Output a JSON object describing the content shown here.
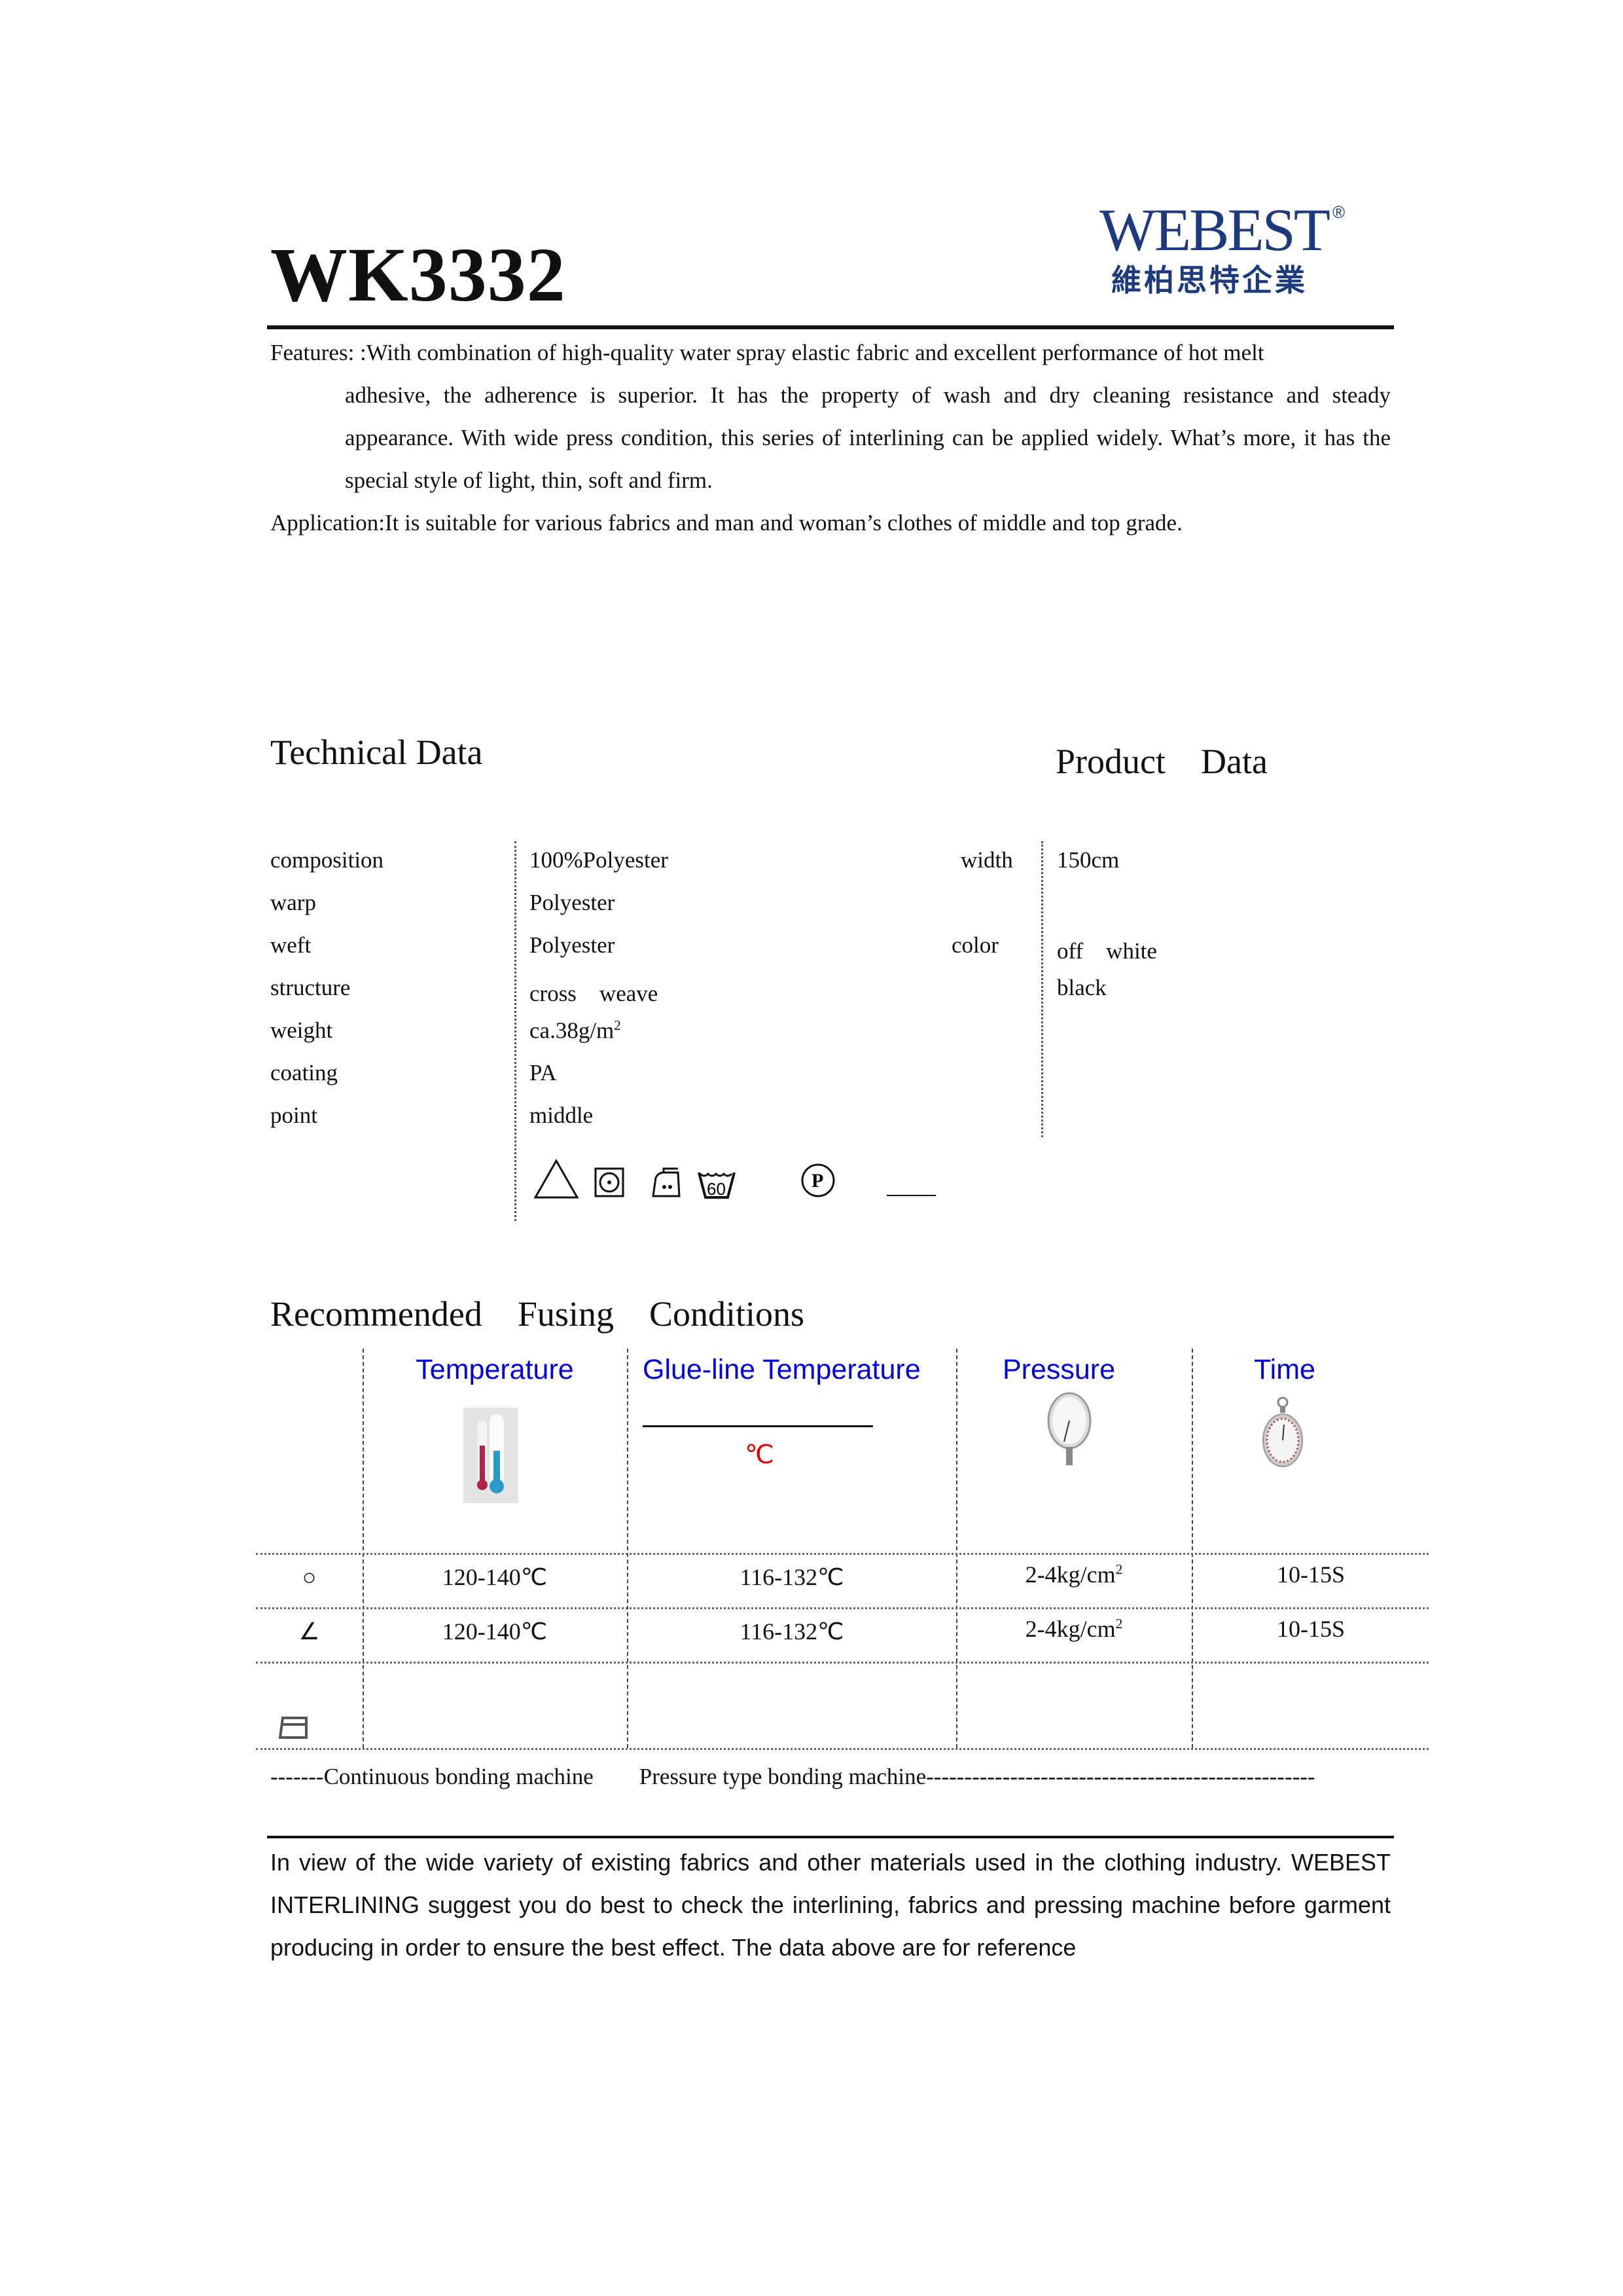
{
  "header": {
    "title": "WK3332",
    "logo_en": "WEBEST",
    "logo_reg": "®",
    "logo_zh": "維柏思特企業"
  },
  "features": {
    "label": "Features:",
    "text_first": ":With combination of high-quality water spray elastic fabric and excellent performance of hot melt",
    "text_rest": "adhesive, the adherence is superior. It has the property of wash and dry cleaning resistance and steady appearance. With wide press condition, this series of interlining can be applied widely. What’s more, it has the special style of light, thin, soft and firm."
  },
  "application": "Application:It is suitable for various fabrics and man and woman’s clothes of middle and top grade.",
  "technical": {
    "heading": "Technical Data",
    "rows": [
      {
        "label": "composition",
        "value": "100%Polyester"
      },
      {
        "label": "warp",
        "value": "Polyester"
      },
      {
        "label": "weft",
        "value": "Polyester"
      },
      {
        "label": "structure",
        "value": "cross　weave"
      },
      {
        "label": "weight",
        "value": "ca.38g/m",
        "sup": "2"
      },
      {
        "label": "coating",
        "value": "PA"
      },
      {
        "label": "point",
        "value": "middle"
      }
    ],
    "care_icons": [
      "no-bleach-restriction-triangle-icon",
      "tumble-dry-icon",
      "iron-medium-icon",
      "wash-60-icon",
      "dry-clean-p-icon"
    ],
    "care_wash_temp": "60",
    "care_dryclean": "P"
  },
  "product": {
    "heading": "Product　Data",
    "width_label": "width",
    "width_value": "150cm",
    "color_label": "color",
    "colors": [
      "off　white",
      "black"
    ]
  },
  "fusing": {
    "heading": "Recommended　Fusing　Conditions",
    "columns": [
      "Temperature",
      "Glue-line Temperature",
      "Pressure",
      "Time"
    ],
    "glue_unit": "℃",
    "header_color": "#0000e0",
    "unit_color": "#e00000",
    "rows": [
      {
        "symbol": "○",
        "temperature": "120-140℃",
        "glue": "116-132℃",
        "pressure": "2-4kg/cm",
        "pressure_sup": "2",
        "time": "10-15S"
      },
      {
        "symbol": "∠",
        "temperature": "120-140℃",
        "glue": "116-132℃",
        "pressure": "2-4kg/cm",
        "pressure_sup": "2",
        "time": "10-15S"
      }
    ],
    "legend": "-------Continuous bonding machine　　Pressure type bonding machine---------------------------------------------------"
  },
  "note": "In view of the wide variety of existing fabrics and other materials used in the clothing industry. WEBEST INTERLINING suggest you do best to check the interlining, fabrics and pressing machine before garment producing in order to ensure the best effect. The data above are for reference"
}
